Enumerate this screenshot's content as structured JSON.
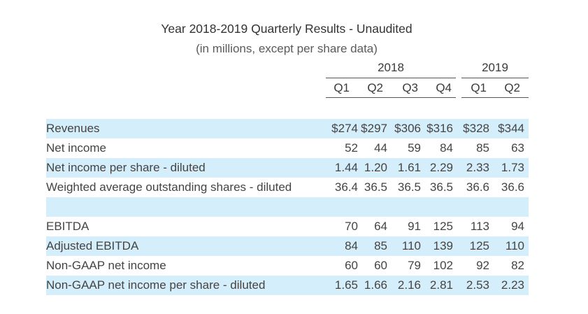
{
  "title": "Year 2018-2019 Quarterly Results - Unaudited",
  "subtitle": "(in millions, except per share data)",
  "years": [
    "2018",
    "2019"
  ],
  "quarters": [
    "Q1",
    "Q2",
    "Q3",
    "Q4",
    "Q1",
    "Q2"
  ],
  "rows": [
    {
      "label": "Revenues",
      "values": [
        "$274",
        "$297",
        "$306",
        "$316",
        "$328",
        "$344"
      ]
    },
    {
      "label": "Net income",
      "values": [
        "52",
        "44",
        "59",
        "84",
        "85",
        "63"
      ]
    },
    {
      "label": "Net income per share - diluted",
      "values": [
        "1.44",
        "1.20",
        "1.61",
        "2.29",
        "2.33",
        "1.73"
      ]
    },
    {
      "label": "Weighted average outstanding shares - diluted",
      "values": [
        "36.4",
        "36.5",
        "36.5",
        "36.5",
        "36.6",
        "36.6"
      ]
    },
    {
      "label": "EBITDA",
      "values": [
        "70",
        "64",
        "91",
        "125",
        "113",
        "94"
      ]
    },
    {
      "label": "Adjusted EBITDA",
      "values": [
        "84",
        "85",
        "110",
        "139",
        "125",
        "110"
      ]
    },
    {
      "label": "Non-GAAP net income",
      "values": [
        "60",
        "60",
        "79",
        "102",
        "92",
        "82"
      ]
    },
    {
      "label": "Non-GAAP net income per share - diluted",
      "values": [
        "1.65",
        "1.66",
        "2.16",
        "2.81",
        "2.53",
        "2.23"
      ]
    }
  ],
  "colors": {
    "row_shade": "#d5eefb",
    "text": "#444444",
    "rule": "#555555"
  }
}
